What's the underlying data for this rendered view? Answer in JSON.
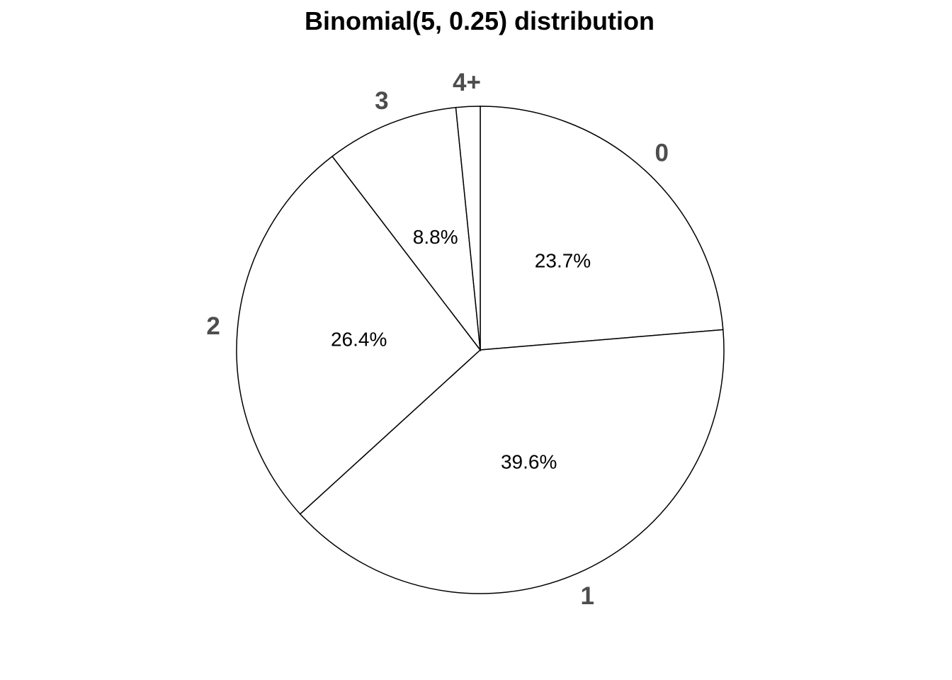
{
  "chart_data": {
    "type": "pie",
    "title": "Binomial(5, 0.25) distribution",
    "categories": [
      "0",
      "1",
      "2",
      "3",
      "4+"
    ],
    "values": [
      0.237,
      0.396,
      0.264,
      0.088,
      0.016
    ],
    "percent_labels": [
      "23.7%",
      "39.6%",
      "26.4%",
      "8.8%",
      ""
    ],
    "direction": "clockwise",
    "start": "12 o'clock",
    "colors": {
      "fill": "#ffffff",
      "stroke": "#000000",
      "category_label": "#4d4d4d",
      "percent_label": "#000000"
    }
  }
}
